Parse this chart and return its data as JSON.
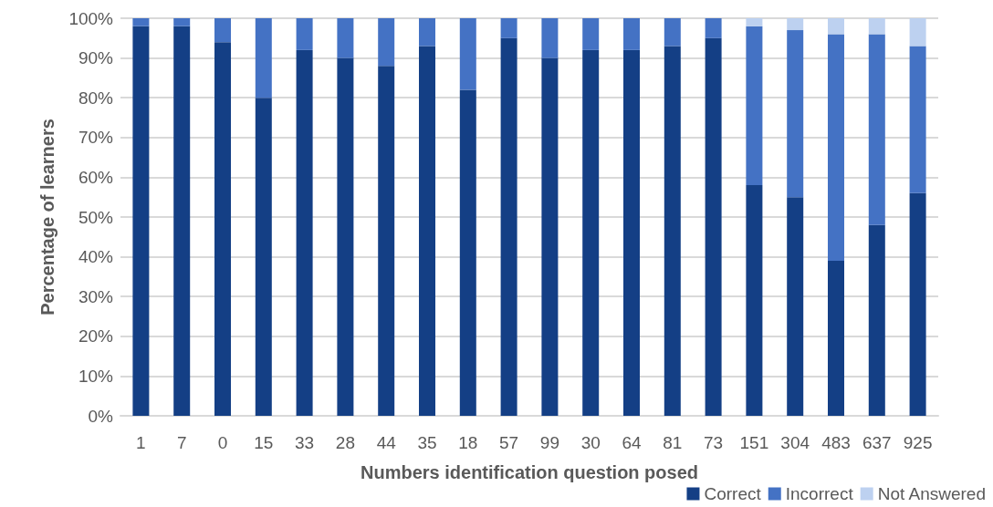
{
  "chart_data": {
    "type": "bar",
    "stacked": true,
    "xlabel": "Numbers identification question posed",
    "ylabel": "Percentage of learners",
    "categories": [
      "1",
      "7",
      "0",
      "15",
      "33",
      "28",
      "44",
      "35",
      "18",
      "57",
      "99",
      "30",
      "64",
      "81",
      "73",
      "151",
      "304",
      "483",
      "637",
      "925"
    ],
    "series": [
      {
        "name": "Correct",
        "color": "#143f85",
        "values": [
          98,
          98,
          94,
          80,
          92,
          90,
          88,
          93,
          82,
          95,
          90,
          92,
          92,
          93,
          95,
          58,
          55,
          39,
          48,
          56
        ]
      },
      {
        "name": "Incorrect",
        "color": "#4472c4",
        "values": [
          2,
          2,
          6,
          20,
          8,
          10,
          12,
          7,
          18,
          5,
          10,
          8,
          8,
          7,
          5,
          40,
          42,
          57,
          48,
          37
        ]
      },
      {
        "name": "Not Answered",
        "color": "#bdd1f0",
        "values": [
          0,
          0,
          0,
          0,
          0,
          0,
          0,
          0,
          0,
          0,
          0,
          0,
          0,
          0,
          0,
          2,
          3,
          4,
          4,
          7
        ]
      }
    ],
    "ylim": [
      0,
      100
    ],
    "yticks": [
      {
        "value": 0,
        "label": "0%"
      },
      {
        "value": 10,
        "label": "10%"
      },
      {
        "value": 20,
        "label": "20%"
      },
      {
        "value": 30,
        "label": "30%"
      },
      {
        "value": 40,
        "label": "40%"
      },
      {
        "value": 50,
        "label": "50%"
      },
      {
        "value": 60,
        "label": "60%"
      },
      {
        "value": 70,
        "label": "70%"
      },
      {
        "value": 80,
        "label": "80%"
      },
      {
        "value": 90,
        "label": "90%"
      },
      {
        "value": 100,
        "label": "100%"
      }
    ],
    "grid": "y",
    "legend": "bottom right"
  }
}
